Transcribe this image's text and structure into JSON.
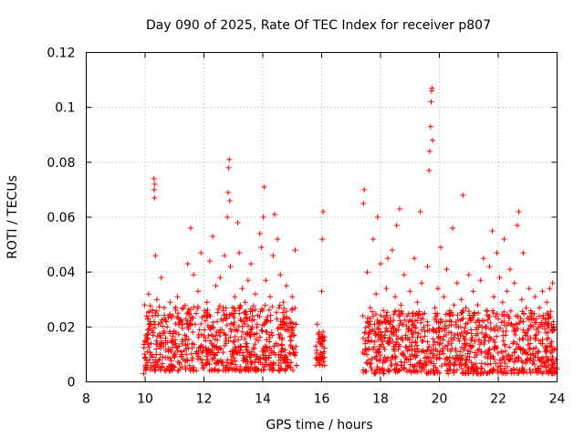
{
  "chart_data": {
    "type": "scatter",
    "title": "Day 090 of 2025, Rate Of TEC Index for receiver p807",
    "xlabel": "GPS time / hours",
    "ylabel": "ROTI / TECUs",
    "xlim": [
      8,
      24
    ],
    "ylim": [
      0,
      0.12
    ],
    "xticks": [
      8,
      10,
      12,
      14,
      16,
      18,
      20,
      22,
      24
    ],
    "xtick_labels": [
      "8",
      "10",
      "12",
      "14",
      "16",
      "18",
      "20",
      "22",
      "24"
    ],
    "yticks": [
      0,
      0.02,
      0.04,
      0.06,
      0.08,
      0.1,
      0.12
    ],
    "ytick_labels": [
      "0",
      "0.02",
      "0.04",
      "0.06",
      "0.08",
      "0.1",
      "0.12"
    ],
    "grid": true,
    "marker": "+",
    "color": "#ff0000",
    "series": [
      {
        "name": "ROTI",
        "points": [
          [
            9.95,
            0.003
          ],
          [
            9.98,
            0.028
          ],
          [
            10.0,
            0.015
          ],
          [
            10.02,
            0.006
          ],
          [
            10.05,
            0.024
          ],
          [
            10.08,
            0.011
          ],
          [
            10.1,
            0.019
          ],
          [
            10.12,
            0.032
          ],
          [
            10.15,
            0.008
          ],
          [
            10.18,
            0.022
          ],
          [
            10.2,
            0.014
          ],
          [
            10.22,
            0.01
          ],
          [
            10.25,
            0.026
          ],
          [
            10.28,
            0.018
          ],
          [
            10.3,
            0.074
          ],
          [
            10.31,
            0.07
          ],
          [
            10.32,
            0.067
          ],
          [
            10.33,
            0.072
          ],
          [
            10.35,
            0.046
          ],
          [
            10.38,
            0.012
          ],
          [
            10.4,
            0.03
          ],
          [
            10.45,
            0.021
          ],
          [
            10.5,
            0.013
          ],
          [
            10.55,
            0.038
          ],
          [
            10.6,
            0.009
          ],
          [
            10.65,
            0.027
          ],
          [
            10.7,
            0.016
          ],
          [
            10.75,
            0.02
          ],
          [
            10.8,
            0.011
          ],
          [
            10.85,
            0.029
          ],
          [
            10.9,
            0.015
          ],
          [
            10.95,
            0.024
          ],
          [
            11.0,
            0.009
          ],
          [
            11.05,
            0.018
          ],
          [
            11.1,
            0.031
          ],
          [
            11.15,
            0.013
          ],
          [
            11.2,
            0.022
          ],
          [
            11.25,
            0.01
          ],
          [
            11.3,
            0.027
          ],
          [
            11.35,
            0.017
          ],
          [
            11.4,
            0.012
          ],
          [
            11.45,
            0.043
          ],
          [
            11.5,
            0.025
          ],
          [
            11.55,
            0.056
          ],
          [
            11.6,
            0.014
          ],
          [
            11.65,
            0.039
          ],
          [
            11.7,
            0.021
          ],
          [
            11.75,
            0.011
          ],
          [
            11.8,
            0.033
          ],
          [
            11.85,
            0.019
          ],
          [
            11.9,
            0.047
          ],
          [
            11.95,
            0.008
          ],
          [
            12.0,
            0.024
          ],
          [
            12.05,
            0.016
          ],
          [
            12.1,
            0.029
          ],
          [
            12.15,
            0.012
          ],
          [
            12.2,
            0.044
          ],
          [
            12.25,
            0.02
          ],
          [
            12.3,
            0.053
          ],
          [
            12.35,
            0.01
          ],
          [
            12.4,
            0.035
          ],
          [
            12.45,
            0.022
          ],
          [
            12.5,
            0.018
          ],
          [
            12.55,
            0.038
          ],
          [
            12.6,
            0.007
          ],
          [
            12.65,
            0.027
          ],
          [
            12.7,
            0.046
          ],
          [
            12.75,
            0.014
          ],
          [
            12.8,
            0.06
          ],
          [
            12.82,
            0.069
          ],
          [
            12.84,
            0.078
          ],
          [
            12.86,
            0.081
          ],
          [
            12.88,
            0.066
          ],
          [
            12.9,
            0.042
          ],
          [
            12.95,
            0.025
          ],
          [
            13.0,
            0.011
          ],
          [
            13.05,
            0.031
          ],
          [
            13.1,
            0.019
          ],
          [
            13.15,
            0.058
          ],
          [
            13.2,
            0.047
          ],
          [
            13.25,
            0.013
          ],
          [
            13.3,
            0.034
          ],
          [
            13.35,
            0.022
          ],
          [
            13.4,
            0.029
          ],
          [
            13.45,
            0.009
          ],
          [
            13.5,
            0.037
          ],
          [
            13.55,
            0.017
          ],
          [
            13.6,
            0.043
          ],
          [
            13.65,
            0.024
          ],
          [
            13.7,
            0.012
          ],
          [
            13.75,
            0.032
          ],
          [
            13.8,
            0.02
          ],
          [
            13.85,
            0.015
          ],
          [
            13.9,
            0.054
          ],
          [
            13.95,
            0.049
          ],
          [
            14.0,
            0.026
          ],
          [
            14.02,
            0.06
          ],
          [
            14.05,
            0.071
          ],
          [
            14.08,
            0.013
          ],
          [
            14.1,
            0.037
          ],
          [
            14.15,
            0.022
          ],
          [
            14.2,
            0.009
          ],
          [
            14.25,
            0.031
          ],
          [
            14.3,
            0.018
          ],
          [
            14.35,
            0.046
          ],
          [
            14.4,
            0.061
          ],
          [
            14.45,
            0.014
          ],
          [
            14.5,
            0.052
          ],
          [
            14.55,
            0.027
          ],
          [
            14.6,
            0.039
          ],
          [
            14.65,
            0.011
          ],
          [
            14.7,
            0.029
          ],
          [
            14.75,
            0.019
          ],
          [
            14.8,
            0.035
          ],
          [
            14.85,
            0.008
          ],
          [
            14.9,
            0.023
          ],
          [
            14.95,
            0.015
          ],
          [
            15.0,
            0.031
          ],
          [
            15.05,
            0.012
          ],
          [
            15.1,
            0.048
          ],
          [
            15.12,
            0.021
          ],
          [
            15.15,
            0.006
          ],
          [
            15.8,
            0.013
          ],
          [
            15.85,
            0.021
          ],
          [
            15.9,
            0.009
          ],
          [
            15.95,
            0.016
          ],
          [
            16.0,
            0.033
          ],
          [
            16.02,
            0.052
          ],
          [
            16.05,
            0.062
          ],
          [
            16.08,
            0.011
          ],
          [
            16.1,
            0.006
          ],
          [
            17.4,
            0.024
          ],
          [
            17.42,
            0.065
          ],
          [
            17.45,
            0.07
          ],
          [
            17.48,
            0.012
          ],
          [
            17.5,
            0.018
          ],
          [
            17.55,
            0.04
          ],
          [
            17.6,
            0.008
          ],
          [
            17.65,
            0.027
          ],
          [
            17.7,
            0.015
          ],
          [
            17.75,
            0.052
          ],
          [
            17.8,
            0.021
          ],
          [
            17.85,
            0.032
          ],
          [
            17.9,
            0.06
          ],
          [
            17.95,
            0.011
          ],
          [
            18.0,
            0.043
          ],
          [
            18.05,
            0.017
          ],
          [
            18.1,
            0.026
          ],
          [
            18.15,
            0.009
          ],
          [
            18.2,
            0.034
          ],
          [
            18.25,
            0.045
          ],
          [
            18.3,
            0.014
          ],
          [
            18.35,
            0.022
          ],
          [
            18.4,
            0.048
          ],
          [
            18.45,
            0.012
          ],
          [
            18.5,
            0.031
          ],
          [
            18.55,
            0.057
          ],
          [
            18.6,
            0.019
          ],
          [
            18.65,
            0.063
          ],
          [
            18.7,
            0.028
          ],
          [
            18.75,
            0.01
          ],
          [
            18.8,
            0.039
          ],
          [
            18.85,
            0.016
          ],
          [
            18.9,
            0.024
          ],
          [
            18.95,
            0.008
          ],
          [
            19.0,
            0.033
          ],
          [
            19.05,
            0.013
          ],
          [
            19.1,
            0.021
          ],
          [
            19.15,
            0.045
          ],
          [
            19.2,
            0.018
          ],
          [
            19.25,
            0.029
          ],
          [
            19.3,
            0.011
          ],
          [
            19.35,
            0.062
          ],
          [
            19.4,
            0.036
          ],
          [
            19.45,
            0.015
          ],
          [
            19.5,
            0.025
          ],
          [
            19.55,
            0.009
          ],
          [
            19.6,
            0.042
          ],
          [
            19.65,
            0.077
          ],
          [
            19.67,
            0.084
          ],
          [
            19.7,
            0.093
          ],
          [
            19.72,
            0.102
          ],
          [
            19.74,
            0.106
          ],
          [
            19.75,
            0.107
          ],
          [
            19.77,
            0.088
          ],
          [
            19.8,
            0.012
          ],
          [
            19.85,
            0.027
          ],
          [
            19.9,
            0.018
          ],
          [
            19.95,
            0.034
          ],
          [
            20.0,
            0.01
          ],
          [
            20.05,
            0.049
          ],
          [
            20.1,
            0.022
          ],
          [
            20.15,
            0.031
          ],
          [
            20.2,
            0.013
          ],
          [
            20.25,
            0.041
          ],
          [
            20.3,
            0.003
          ],
          [
            20.35,
            0.025
          ],
          [
            20.4,
            0.016
          ],
          [
            20.45,
            0.056
          ],
          [
            20.5,
            0.028
          ],
          [
            20.55,
            0.012
          ],
          [
            20.6,
            0.036
          ],
          [
            20.65,
            0.02
          ],
          [
            20.7,
            0.008
          ],
          [
            20.75,
            0.03
          ],
          [
            20.8,
            0.068
          ],
          [
            20.85,
            0.014
          ],
          [
            20.9,
            0.027
          ],
          [
            20.95,
            0.018
          ],
          [
            21.0,
            0.039
          ],
          [
            21.05,
            0.011
          ],
          [
            21.1,
            0.023
          ],
          [
            21.15,
            0.033
          ],
          [
            21.2,
            0.009
          ],
          [
            21.25,
            0.019
          ],
          [
            21.3,
            0.028
          ],
          [
            21.35,
            0.012
          ],
          [
            21.4,
            0.037
          ],
          [
            21.45,
            0.02
          ],
          [
            21.5,
            0.045
          ],
          [
            21.55,
            0.015
          ],
          [
            21.6,
            0.026
          ],
          [
            21.65,
            0.01
          ],
          [
            21.7,
            0.042
          ],
          [
            21.75,
            0.019
          ],
          [
            21.8,
            0.055
          ],
          [
            21.85,
            0.031
          ],
          [
            21.9,
            0.013
          ],
          [
            21.95,
            0.047
          ],
          [
            22.0,
            0.023
          ],
          [
            22.05,
            0.038
          ],
          [
            22.1,
            0.011
          ],
          [
            22.15,
            0.029
          ],
          [
            22.2,
            0.052
          ],
          [
            22.25,
            0.017
          ],
          [
            22.3,
            0.033
          ],
          [
            22.35,
            0.008
          ],
          [
            22.4,
            0.041
          ],
          [
            22.45,
            0.021
          ],
          [
            22.5,
            0.014
          ],
          [
            22.55,
            0.036
          ],
          [
            22.6,
            0.024
          ],
          [
            22.65,
            0.057
          ],
          [
            22.7,
            0.062
          ],
          [
            22.75,
            0.012
          ],
          [
            22.8,
            0.03
          ],
          [
            22.85,
            0.047
          ],
          [
            22.9,
            0.018
          ],
          [
            22.95,
            0.027
          ],
          [
            23.0,
            0.01
          ],
          [
            23.05,
            0.034
          ],
          [
            23.1,
            0.016
          ],
          [
            23.15,
            0.025
          ],
          [
            23.2,
            0.012
          ],
          [
            23.25,
            0.031
          ],
          [
            23.3,
            0.019
          ],
          [
            23.35,
            0.009
          ],
          [
            23.4,
            0.027
          ],
          [
            23.45,
            0.014
          ],
          [
            23.5,
            0.033
          ],
          [
            23.55,
            0.021
          ],
          [
            23.6,
            0.011
          ],
          [
            23.65,
            0.029
          ],
          [
            23.7,
            0.016
          ],
          [
            23.75,
            0.034
          ],
          [
            23.8,
            0.008
          ],
          [
            23.85,
            0.036
          ],
          [
            23.9,
            0.019
          ],
          [
            23.95,
            0.012
          ]
        ],
        "bands": [
          {
            "x": [
              9.95,
              15.15
            ],
            "y": [
              0.004,
              0.028
            ],
            "count": 700
          },
          {
            "x": [
              15.8,
              16.1
            ],
            "y": [
              0.006,
              0.02
            ],
            "count": 40
          },
          {
            "x": [
              17.4,
              24.0
            ],
            "y": [
              0.003,
              0.026
            ],
            "count": 900
          }
        ]
      }
    ]
  }
}
